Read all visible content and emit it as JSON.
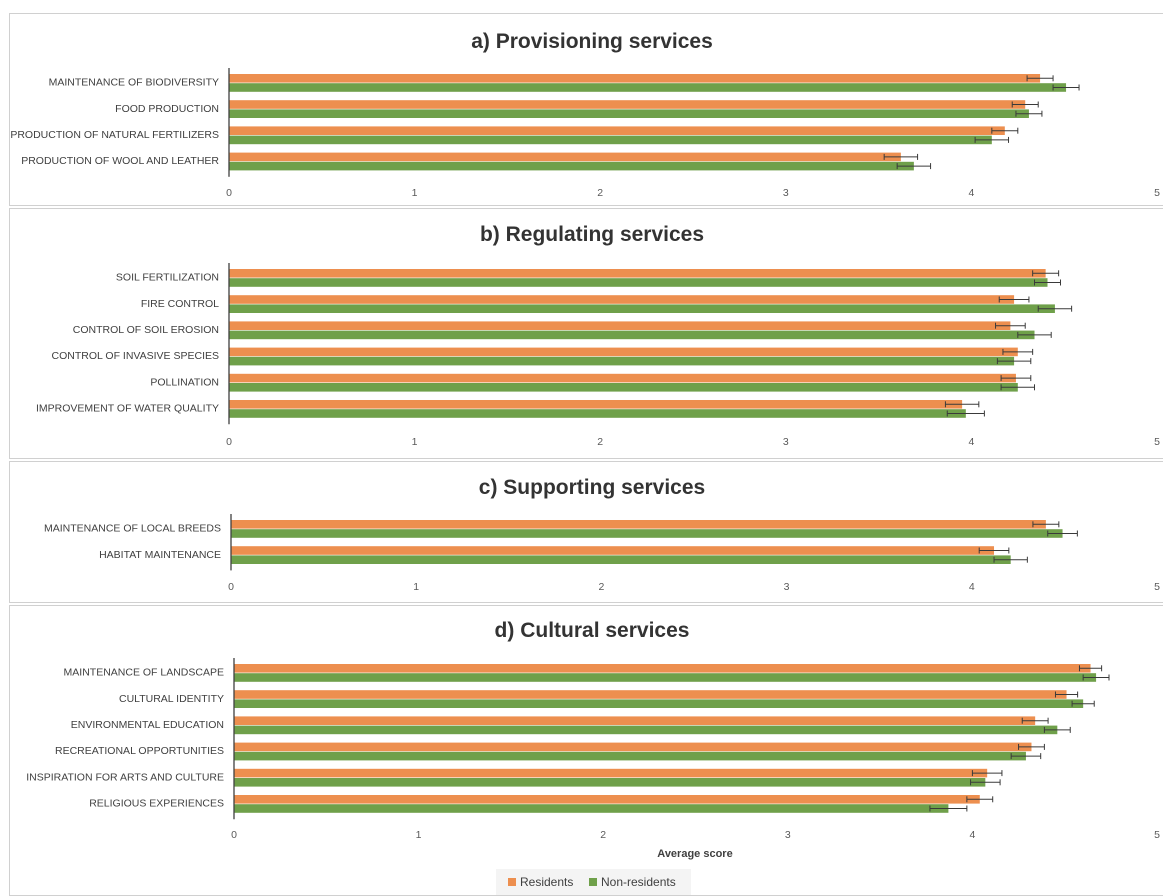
{
  "chart_data": {
    "type": "bar",
    "orientation": "horizontal",
    "xlabel": "Average score",
    "xlim": [
      0,
      5
    ],
    "xticks": [
      0,
      1,
      2,
      3,
      4,
      5
    ],
    "grid": false,
    "legend_position": "bottom",
    "series": [
      {
        "name": "Residents",
        "color": "#ED8F4F"
      },
      {
        "name": "Non-residents",
        "color": "#6FA04A"
      }
    ],
    "panels": [
      {
        "title": "a) Provisioning services",
        "categories": [
          "MAINTENANCE OF BIODIVERSITY",
          "FOOD PRODUCTION",
          "PRODUCTION OF NATURAL FERTILIZERS",
          "PRODUCTION OF WOOL AND LEATHER"
        ],
        "residents": [
          4.37,
          4.29,
          4.18,
          3.62
        ],
        "residents_err": [
          0.07,
          0.07,
          0.07,
          0.09
        ],
        "non_residents": [
          4.51,
          4.31,
          4.11,
          3.69
        ],
        "non_residents_err": [
          0.07,
          0.07,
          0.09,
          0.09
        ]
      },
      {
        "title": "b) Regulating services",
        "categories": [
          "SOIL FERTILIZATION",
          "FIRE CONTROL",
          "CONTROL OF SOIL EROSION",
          "CONTROL OF INVASIVE SPECIES",
          "POLLINATION",
          "IMPROVEMENT OF WATER QUALITY"
        ],
        "residents": [
          4.4,
          4.23,
          4.21,
          4.25,
          4.24,
          3.95
        ],
        "residents_err": [
          0.07,
          0.08,
          0.08,
          0.08,
          0.08,
          0.09
        ],
        "non_residents": [
          4.41,
          4.45,
          4.34,
          4.23,
          4.25,
          3.97
        ],
        "non_residents_err": [
          0.07,
          0.09,
          0.09,
          0.09,
          0.09,
          0.1
        ]
      },
      {
        "title": "c) Supporting services",
        "categories": [
          "MAINTENANCE OF LOCAL BREEDS",
          "HABITAT MAINTENANCE"
        ],
        "residents": [
          4.4,
          4.12
        ],
        "residents_err": [
          0.07,
          0.08
        ],
        "non_residents": [
          4.49,
          4.21
        ],
        "non_residents_err": [
          0.08,
          0.09
        ]
      },
      {
        "title": "d) Cultural services",
        "categories": [
          "MAINTENANCE OF LANDSCAPE",
          "CULTURAL IDENTITY",
          "ENVIRONMENTAL EDUCATION",
          "RECREATIONAL OPPORTUNITIES",
          "INSPIRATION FOR ARTS AND CULTURE",
          "RELIGIOUS EXPERIENCES"
        ],
        "residents": [
          4.64,
          4.51,
          4.34,
          4.32,
          4.08,
          4.04
        ],
        "residents_err": [
          0.06,
          0.06,
          0.07,
          0.07,
          0.08,
          0.07
        ],
        "non_residents": [
          4.67,
          4.6,
          4.46,
          4.29,
          4.07,
          3.87
        ],
        "non_residents_err": [
          0.07,
          0.06,
          0.07,
          0.08,
          0.08,
          0.1
        ]
      }
    ]
  }
}
